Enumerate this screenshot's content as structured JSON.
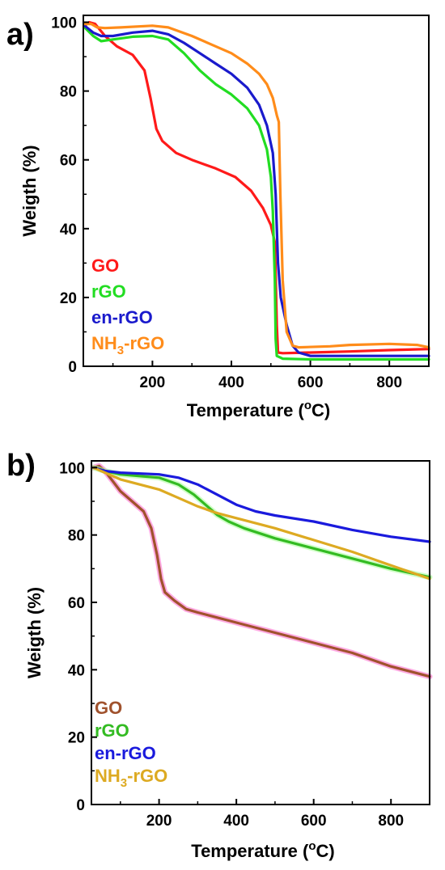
{
  "chart_data": [
    {
      "panel_label": "a)",
      "type": "line",
      "xlabel": "Temperature (",
      "xlabel_sup": "o",
      "xlabel_end": "C)",
      "ylabel": "Weigth (%)",
      "xlim": [
        25,
        900
      ],
      "ylim": [
        0,
        102
      ],
      "xticks": [
        200,
        400,
        600,
        800
      ],
      "yticks": [
        0,
        20,
        40,
        60,
        80,
        100
      ],
      "legend_position": "bottom-left",
      "series": [
        {
          "name": "GO",
          "color": "#ff1a1a",
          "points": [
            [
              28,
              99
            ],
            [
              40,
              100
            ],
            [
              55,
              99.5
            ],
            [
              80,
              96
            ],
            [
              110,
              93
            ],
            [
              150,
              90.5
            ],
            [
              180,
              86
            ],
            [
              195,
              78
            ],
            [
              210,
              69
            ],
            [
              225,
              65.5
            ],
            [
              260,
              62
            ],
            [
              300,
              60
            ],
            [
              360,
              57.5
            ],
            [
              410,
              55
            ],
            [
              450,
              51
            ],
            [
              480,
              46
            ],
            [
              500,
              41
            ],
            [
              510,
              36
            ],
            [
              515,
              12
            ],
            [
              518,
              4
            ],
            [
              530,
              3.8
            ],
            [
              600,
              4
            ],
            [
              700,
              4.3
            ],
            [
              800,
              4.7
            ],
            [
              900,
              5
            ]
          ]
        },
        {
          "name": "rGO",
          "color": "#22dd22",
          "points": [
            [
              28,
              98.5
            ],
            [
              50,
              96
            ],
            [
              70,
              94.5
            ],
            [
              100,
              95
            ],
            [
              150,
              95.8
            ],
            [
              200,
              96
            ],
            [
              240,
              95
            ],
            [
              280,
              91
            ],
            [
              320,
              86
            ],
            [
              360,
              82
            ],
            [
              400,
              79
            ],
            [
              440,
              75
            ],
            [
              470,
              70
            ],
            [
              490,
              63
            ],
            [
              500,
              55
            ],
            [
              505,
              45
            ],
            [
              510,
              25
            ],
            [
              512,
              8
            ],
            [
              515,
              3
            ],
            [
              530,
              2.2
            ],
            [
              600,
              2
            ],
            [
              700,
              2
            ],
            [
              800,
              2
            ],
            [
              900,
              2
            ]
          ]
        },
        {
          "name": "en-rGO",
          "color": "#1a1acc",
          "points": [
            [
              28,
              99
            ],
            [
              50,
              97
            ],
            [
              70,
              96
            ],
            [
              100,
              96
            ],
            [
              150,
              97
            ],
            [
              200,
              97.5
            ],
            [
              240,
              96.5
            ],
            [
              280,
              94
            ],
            [
              320,
              91
            ],
            [
              360,
              88
            ],
            [
              400,
              85
            ],
            [
              440,
              81
            ],
            [
              470,
              76
            ],
            [
              490,
              70
            ],
            [
              505,
              62
            ],
            [
              512,
              50
            ],
            [
              518,
              30
            ],
            [
              525,
              20
            ],
            [
              540,
              12
            ],
            [
              555,
              6
            ],
            [
              570,
              4
            ],
            [
              600,
              3
            ],
            [
              700,
              3
            ],
            [
              800,
              3
            ],
            [
              900,
              3
            ]
          ]
        },
        {
          "name": "NH3-rGO",
          "name_base": "NH",
          "name_sub": "3",
          "name_tail": "-rGO",
          "color": "#ff8c1a",
          "points": [
            [
              28,
              99.5
            ],
            [
              45,
              99.5
            ],
            [
              60,
              98.5
            ],
            [
              80,
              98.3
            ],
            [
              120,
              98.5
            ],
            [
              200,
              99
            ],
            [
              240,
              98.5
            ],
            [
              300,
              96
            ],
            [
              350,
              93.5
            ],
            [
              400,
              91
            ],
            [
              440,
              88
            ],
            [
              470,
              85
            ],
            [
              490,
              82
            ],
            [
              505,
              78
            ],
            [
              515,
              73
            ],
            [
              520,
              71
            ],
            [
              524,
              50
            ],
            [
              530,
              25
            ],
            [
              540,
              10
            ],
            [
              555,
              6
            ],
            [
              570,
              5.5
            ],
            [
              650,
              5.8
            ],
            [
              700,
              6.2
            ],
            [
              800,
              6.5
            ],
            [
              870,
              6.2
            ],
            [
              900,
              5.5
            ]
          ]
        }
      ]
    },
    {
      "panel_label": "b)",
      "type": "line",
      "xlabel": "Temperature (",
      "xlabel_sup": "o",
      "xlabel_end": "C)",
      "ylabel": "Weigth (%)",
      "xlim": [
        25,
        900
      ],
      "ylim": [
        0,
        102
      ],
      "xticks": [
        200,
        400,
        600,
        800
      ],
      "yticks": [
        0,
        20,
        40,
        60,
        80,
        100
      ],
      "legend_position": "bottom-left",
      "series": [
        {
          "name": "GO",
          "color": "#a0522d",
          "halo": "#ff66cc",
          "points": [
            [
              30,
              100
            ],
            [
              45,
              100.5
            ],
            [
              60,
              99
            ],
            [
              80,
              96
            ],
            [
              100,
              93
            ],
            [
              130,
              90
            ],
            [
              160,
              87
            ],
            [
              180,
              82
            ],
            [
              195,
              74
            ],
            [
              205,
              67
            ],
            [
              215,
              63
            ],
            [
              240,
              60.5
            ],
            [
              270,
              58
            ],
            [
              300,
              57
            ],
            [
              400,
              54
            ],
            [
              500,
              51
            ],
            [
              600,
              48
            ],
            [
              700,
              45
            ],
            [
              800,
              41
            ],
            [
              900,
              38
            ]
          ]
        },
        {
          "name": "rGO",
          "color": "#33bb22",
          "halo": "#aaff99",
          "points": [
            [
              30,
              100
            ],
            [
              60,
              99
            ],
            [
              100,
              98
            ],
            [
              150,
              97.5
            ],
            [
              200,
              97
            ],
            [
              250,
              95
            ],
            [
              290,
              92
            ],
            [
              320,
              89
            ],
            [
              350,
              86
            ],
            [
              380,
              84
            ],
            [
              420,
              82
            ],
            [
              500,
              79
            ],
            [
              600,
              76
            ],
            [
              700,
              73
            ],
            [
              800,
              70
            ],
            [
              900,
              67.5
            ]
          ]
        },
        {
          "name": "en-rGO",
          "color": "#1a1add",
          "points": [
            [
              30,
              100
            ],
            [
              60,
              99
            ],
            [
              100,
              98.5
            ],
            [
              200,
              98
            ],
            [
              250,
              97
            ],
            [
              300,
              95
            ],
            [
              350,
              92
            ],
            [
              400,
              89
            ],
            [
              450,
              87
            ],
            [
              500,
              85.8
            ],
            [
              600,
              84
            ],
            [
              700,
              81.5
            ],
            [
              800,
              79.5
            ],
            [
              900,
              78
            ]
          ]
        },
        {
          "name": "NH3-rGO",
          "name_base": "NH",
          "name_sub": "3",
          "name_tail": "-rGO",
          "color": "#ddaa22",
          "points": [
            [
              30,
              100
            ],
            [
              60,
              98.5
            ],
            [
              100,
              96.5
            ],
            [
              150,
              95
            ],
            [
              200,
              93.5
            ],
            [
              250,
              91
            ],
            [
              300,
              88.5
            ],
            [
              350,
              86.5
            ],
            [
              400,
              85
            ],
            [
              500,
              82
            ],
            [
              600,
              78.5
            ],
            [
              700,
              75
            ],
            [
              800,
              71
            ],
            [
              900,
              67
            ]
          ]
        }
      ]
    }
  ]
}
